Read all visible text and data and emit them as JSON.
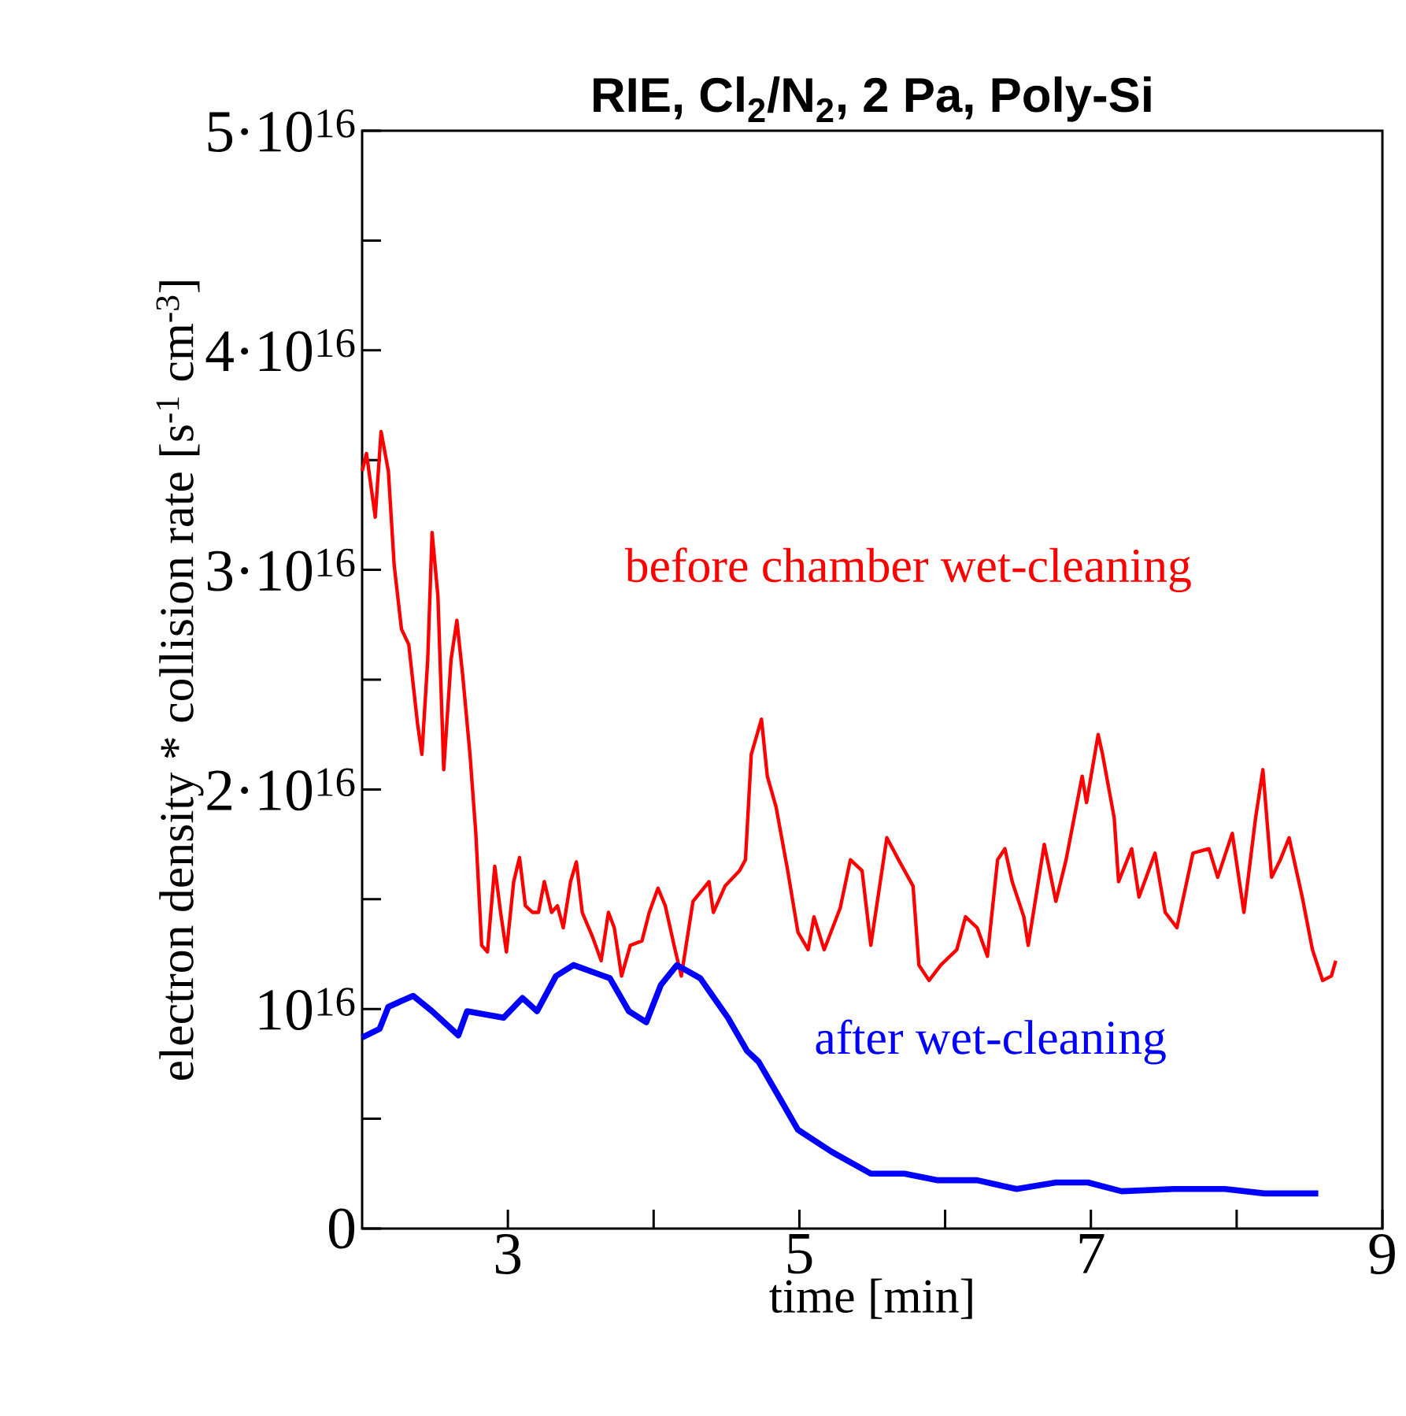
{
  "chart_data": {
    "type": "line",
    "title": "RIE, Cl$_{2}$/N$_{2}$, 2 Pa, Poly-Si",
    "xlabel": "time  [min]",
    "ylabel": "electron density * collision rate  [s$^{-1}$ cm$^{-3}$]",
    "xlim": [
      2,
      9
    ],
    "ylim": [
      0,
      5e+16
    ],
    "xticks": [
      3,
      {
        "value": 4,
        "label": null
      },
      5,
      {
        "value": 6,
        "label": null
      },
      7,
      {
        "value": 8,
        "label": null
      },
      9
    ],
    "yticks": [
      0,
      {
        "value": 5000000000000000.0,
        "label": null
      },
      {
        "value": 1e+16,
        "label": "10$^{16}$"
      },
      {
        "value": 1.5e+16,
        "label": null
      },
      {
        "value": 2e+16,
        "label": "2·10$^{16}$"
      },
      {
        "value": 2.5e+16,
        "label": null
      },
      {
        "value": 3e+16,
        "label": "3·10$^{16}$"
      },
      {
        "value": 3.5e+16,
        "label": null
      },
      {
        "value": 4e+16,
        "label": "4·10$^{16}$"
      },
      {
        "value": 4.5e+16,
        "label": null
      },
      {
        "value": 5e+16,
        "label": "5·10$^{16}$"
      }
    ],
    "series": [
      {
        "name": "before chamber wet-cleaning",
        "color": "#ff0000",
        "x": [
          2.0,
          2.03,
          2.09,
          2.13,
          2.18,
          2.22,
          2.27,
          2.32,
          2.38,
          2.41,
          2.45,
          2.48,
          2.52,
          2.56,
          2.61,
          2.65,
          2.69,
          2.74,
          2.78,
          2.82,
          2.86,
          2.91,
          2.95,
          2.99,
          3.04,
          3.08,
          3.12,
          3.17,
          3.21,
          3.25,
          3.3,
          3.34,
          3.38,
          3.43,
          3.47,
          3.51,
          3.58,
          3.64,
          3.69,
          3.73,
          3.78,
          3.84,
          3.92,
          3.97,
          4.03,
          4.08,
          4.14,
          4.19,
          4.27,
          4.38,
          4.41,
          4.49,
          4.59,
          4.63,
          4.67,
          4.74,
          4.78,
          4.84,
          4.92,
          4.99,
          5.06,
          5.1,
          5.17,
          5.28,
          5.35,
          5.43,
          5.49,
          5.6,
          5.68,
          5.78,
          5.82,
          5.89,
          5.97,
          6.08,
          6.14,
          6.22,
          6.29,
          6.36,
          6.41,
          6.46,
          6.54,
          6.57,
          6.68,
          6.76,
          6.83,
          6.94,
          6.97,
          7.05,
          7.08,
          7.16,
          7.19,
          7.28,
          7.33,
          7.44,
          7.51,
          7.59,
          7.7,
          7.81,
          7.87,
          7.97,
          8.05,
          8.13,
          8.18,
          8.24,
          8.3,
          8.36,
          8.45,
          8.52,
          8.59,
          8.65,
          8.68
        ],
        "values": [
          3.45e+16,
          3.53e+16,
          3.24e+16,
          3.63e+16,
          3.45e+16,
          3.02e+16,
          2.73e+16,
          2.66e+16,
          2.3e+16,
          2.16e+16,
          2.59e+16,
          3.17e+16,
          2.88e+16,
          2.09e+16,
          2.59e+16,
          2.77e+16,
          2.52e+16,
          2.16e+16,
          1.8e+16,
          1.29e+16,
          1.26e+16,
          1.65e+16,
          1.44e+16,
          1.26e+16,
          1.58e+16,
          1.69e+16,
          1.47e+16,
          1.44e+16,
          1.44e+16,
          1.58e+16,
          1.44e+16,
          1.47e+16,
          1.37e+16,
          1.58e+16,
          1.67e+16,
          1.44e+16,
          1.33e+16,
          1.22e+16,
          1.44e+16,
          1.37e+16,
          1.15e+16,
          1.29e+16,
          1.31e+16,
          1.44e+16,
          1.55e+16,
          1.47e+16,
          1.29e+16,
          1.15e+16,
          1.49e+16,
          1.58e+16,
          1.44e+16,
          1.56e+16,
          1.63e+16,
          1.68e+16,
          2.16e+16,
          2.32e+16,
          2.06e+16,
          1.92e+16,
          1.63e+16,
          1.35e+16,
          1.27e+16,
          1.42e+16,
          1.27e+16,
          1.46e+16,
          1.68e+16,
          1.63e+16,
          1.29e+16,
          1.78e+16,
          1.68e+16,
          1.56e+16,
          1.2e+16,
          1.13e+16,
          1.2e+16,
          1.27e+16,
          1.42e+16,
          1.37e+16,
          1.24e+16,
          1.68e+16,
          1.73e+16,
          1.58e+16,
          1.42e+16,
          1.29e+16,
          1.75e+16,
          1.49e+16,
          1.68e+16,
          2.06e+16,
          1.94e+16,
          2.25e+16,
          2.16e+16,
          1.87e+16,
          1.58e+16,
          1.73e+16,
          1.51e+16,
          1.71e+16,
          1.44e+16,
          1.37e+16,
          1.71e+16,
          1.73e+16,
          1.6e+16,
          1.8e+16,
          1.44e+16,
          1.87e+16,
          2.09e+16,
          1.6e+16,
          1.68e+16,
          1.78e+16,
          1.51e+16,
          1.27e+16,
          1.13e+16,
          1.15e+16,
          1.22e+16
        ]
      },
      {
        "name": "after wet-cleaning",
        "color": "#0000ff",
        "x": [
          2.0,
          2.12,
          2.18,
          2.35,
          2.48,
          2.66,
          2.72,
          2.97,
          3.1,
          3.2,
          3.33,
          3.45,
          3.7,
          3.83,
          3.95,
          4.05,
          4.16,
          4.32,
          4.51,
          4.64,
          4.72,
          4.86,
          4.99,
          5.22,
          5.49,
          5.72,
          5.95,
          6.22,
          6.49,
          6.76,
          6.98,
          7.21,
          7.57,
          7.92,
          8.19,
          8.56
        ],
        "values": [
          8700000000000000.0,
          9100000000000000.0,
          1.01e+16,
          1.06e+16,
          9900000000000000.0,
          8800000000000000.0,
          9900000000000000.0,
          9600000000000000.0,
          1.05e+16,
          9900000000000000.0,
          1.15e+16,
          1.2e+16,
          1.14e+16,
          9900000000000000.0,
          9400000000000000.0,
          1.11e+16,
          1.2e+16,
          1.14e+16,
          9600000000000000.0,
          8100000000000000.0,
          7600000000000000.0,
          6000000000000000.0,
          4500000000000000.0,
          3500000000000000.0,
          2500000000000000.0,
          2500000000000000.0,
          2200000000000000.0,
          2200000000000000.0,
          1800000000000000.0,
          2100000000000000.0,
          2100000000000000.0,
          1700000000000000.0,
          1800000000000000.0,
          1800000000000000.0,
          1600000000000000.0,
          1600000000000000.0
        ]
      }
    ]
  }
}
